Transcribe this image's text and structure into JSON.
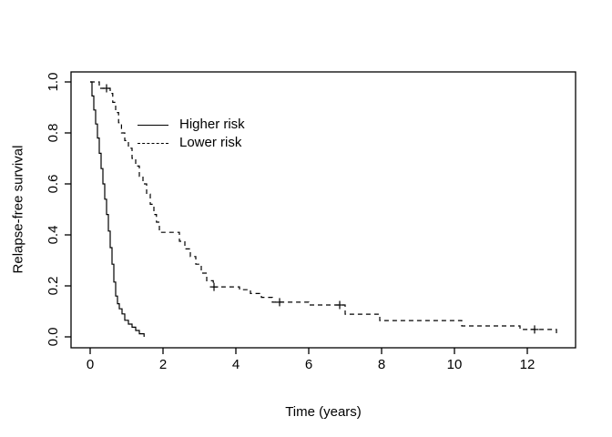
{
  "figure": {
    "background": "#ffffff",
    "line_color": "#000000"
  },
  "chart_data": {
    "type": "line",
    "subtype": "kaplan-meier-step",
    "title": "",
    "xlabel": "Time (years)",
    "ylabel": "Relapse-free survival",
    "xlim": [
      0,
      13.3
    ],
    "ylim": [
      0,
      1.04
    ],
    "grid": false,
    "legend_position": "topleft",
    "x_ticks": [
      0,
      2,
      4,
      6,
      8,
      10,
      12
    ],
    "x_tick_labels": [
      "0",
      "2",
      "4",
      "6",
      "8",
      "10",
      "12"
    ],
    "y_ticks": [
      0.0,
      0.2,
      0.4,
      0.6,
      0.8,
      1.0
    ],
    "y_tick_labels": [
      "0.0",
      "0.2",
      "0.4",
      "0.6",
      "0.8",
      "1.0"
    ],
    "series": [
      {
        "id": "higher-risk",
        "name": "Higher risk",
        "linestyle": "solid",
        "color": "#000000",
        "points": [
          [
            0.0,
            1.0
          ],
          [
            0.05,
            0.945
          ],
          [
            0.1,
            0.89
          ],
          [
            0.15,
            0.835
          ],
          [
            0.2,
            0.78
          ],
          [
            0.25,
            0.72
          ],
          [
            0.3,
            0.66
          ],
          [
            0.35,
            0.6
          ],
          [
            0.4,
            0.54
          ],
          [
            0.45,
            0.48
          ],
          [
            0.5,
            0.415
          ],
          [
            0.55,
            0.35
          ],
          [
            0.6,
            0.285
          ],
          [
            0.65,
            0.215
          ],
          [
            0.7,
            0.16
          ],
          [
            0.75,
            0.13
          ],
          [
            0.8,
            0.11
          ],
          [
            0.875,
            0.09
          ],
          [
            0.95,
            0.065
          ],
          [
            1.05,
            0.05
          ],
          [
            1.15,
            0.038
          ],
          [
            1.25,
            0.025
          ],
          [
            1.35,
            0.012
          ],
          [
            1.48,
            0.0
          ]
        ],
        "censors": []
      },
      {
        "id": "lower-risk",
        "name": "Lower risk",
        "linestyle": "dashed",
        "color": "#000000",
        "points": [
          [
            0.0,
            1.0
          ],
          [
            0.25,
            0.975
          ],
          [
            0.55,
            0.955
          ],
          [
            0.62,
            0.92
          ],
          [
            0.7,
            0.88
          ],
          [
            0.78,
            0.84
          ],
          [
            0.86,
            0.8
          ],
          [
            0.95,
            0.77
          ],
          [
            1.05,
            0.74
          ],
          [
            1.15,
            0.7
          ],
          [
            1.25,
            0.67
          ],
          [
            1.35,
            0.63
          ],
          [
            1.45,
            0.6
          ],
          [
            1.55,
            0.56
          ],
          [
            1.65,
            0.52
          ],
          [
            1.75,
            0.48
          ],
          [
            1.82,
            0.45
          ],
          [
            1.9,
            0.41
          ],
          [
            2.45,
            0.375
          ],
          [
            2.6,
            0.345
          ],
          [
            2.75,
            0.315
          ],
          [
            2.9,
            0.285
          ],
          [
            3.05,
            0.25
          ],
          [
            3.2,
            0.22
          ],
          [
            3.38,
            0.196
          ],
          [
            4.1,
            0.185
          ],
          [
            4.4,
            0.17
          ],
          [
            4.7,
            0.155
          ],
          [
            5.0,
            0.136
          ],
          [
            6.0,
            0.125
          ],
          [
            7.0,
            0.089
          ],
          [
            7.95,
            0.064
          ],
          [
            10.2,
            0.043
          ],
          [
            11.8,
            0.029
          ],
          [
            12.8,
            0.0
          ]
        ],
        "censors": [
          [
            0.45,
            0.975
          ],
          [
            3.4,
            0.196
          ],
          [
            5.2,
            0.136
          ],
          [
            6.85,
            0.125
          ],
          [
            12.2,
            0.029
          ]
        ]
      }
    ]
  },
  "legend": {
    "entries": [
      {
        "label": "Higher risk",
        "style": "solid"
      },
      {
        "label": "Lower risk",
        "style": "dashed"
      }
    ]
  }
}
